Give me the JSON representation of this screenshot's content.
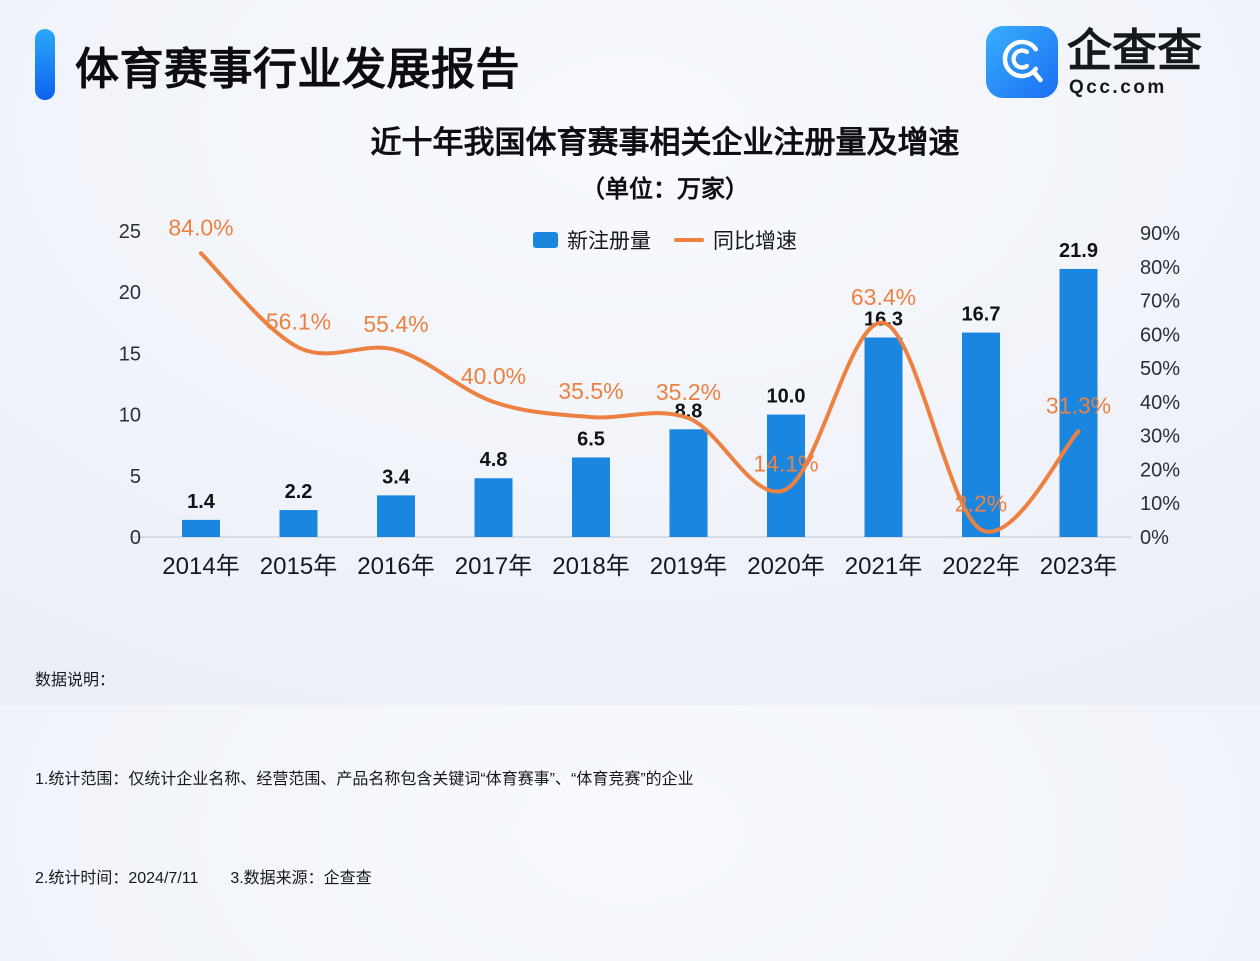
{
  "page": {
    "background_top": "#f8fafd",
    "background_bottom": "#e5eaf4"
  },
  "header": {
    "title": "体育赛事行业发展报告",
    "accent_color_top": "#2BA9FB",
    "accent_color_bottom": "#0E62EE",
    "logo": {
      "name": "企查查",
      "domain": "Qcc.com",
      "icon": "qcc-magnifier-icon",
      "icon_color_top": "#38AFFC",
      "icon_color_bottom": "#1B6EF3"
    }
  },
  "chart": {
    "title": "近十年我国体育赛事相关企业注册量及增速",
    "subtitle": "（单位：万家）",
    "legend": [
      {
        "label": "新注册量",
        "type": "bar",
        "color": "#1A86E0"
      },
      {
        "label": "同比增速",
        "type": "line",
        "color": "#EC8141"
      }
    ]
  },
  "chart_data": {
    "type": "bar",
    "title": "近十年我国体育赛事相关企业注册量及增速",
    "subtitle": "（单位：万家）",
    "categories": [
      "2014年",
      "2015年",
      "2016年",
      "2017年",
      "2018年",
      "2019年",
      "2020年",
      "2021年",
      "2022年",
      "2023年"
    ],
    "series": [
      {
        "name": "新注册量",
        "type": "bar",
        "axis": "left",
        "color": "#1A86E0",
        "values": [
          1.4,
          2.2,
          3.4,
          4.8,
          6.5,
          8.8,
          10.0,
          16.3,
          16.7,
          21.9
        ],
        "labels": [
          "1.4",
          "2.2",
          "3.4",
          "4.8",
          "6.5",
          "8.8",
          "10.0",
          "16.3",
          "16.7",
          "21.9"
        ]
      },
      {
        "name": "同比增速",
        "type": "line",
        "axis": "right",
        "color": "#EC8141",
        "values": [
          84.0,
          56.1,
          55.4,
          40.0,
          35.5,
          35.2,
          14.1,
          63.4,
          2.2,
          31.3
        ],
        "labels": [
          "84.0%",
          "56.1%",
          "55.4%",
          "40.0%",
          "35.5%",
          "35.2%",
          "14.1%",
          "63.4%",
          "2.2%",
          "31.3%"
        ]
      }
    ],
    "left_axis": {
      "ticks": [
        0,
        5,
        10,
        15,
        20,
        25
      ],
      "min": 0,
      "max": 25
    },
    "right_axis": {
      "ticks": [
        "0%",
        "10%",
        "20%",
        "30%",
        "40%",
        "50%",
        "60%",
        "70%",
        "80%",
        "90%"
      ],
      "min": 0,
      "max": 90
    },
    "grid": false,
    "legend_position": "top"
  },
  "footer": {
    "lines": [
      "数据说明：",
      "1.统计范围：仅统计企业名称、经营范围、产品名称包含关键词“体育赛事”、“体育竞赛”的企业",
      "2.统计时间：2024/7/11　　3.数据来源：企查查"
    ]
  }
}
